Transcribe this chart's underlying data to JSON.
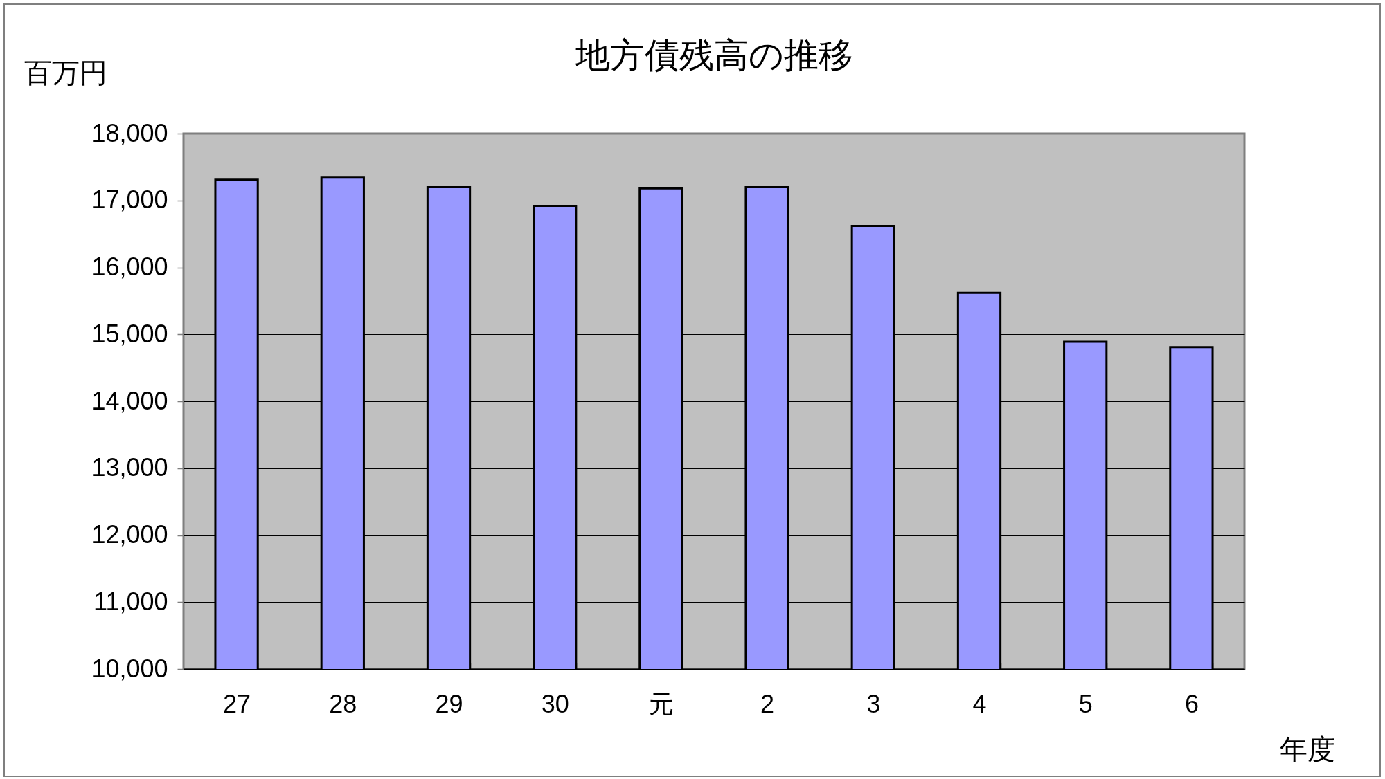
{
  "chart_data": {
    "type": "bar",
    "title": "地方債残高の推移",
    "ylabel": "百万円",
    "xlabel": "年度",
    "categories": [
      "27",
      "28",
      "29",
      "30",
      "元",
      "2",
      "3",
      "4",
      "5",
      "6"
    ],
    "values": [
      17310,
      17340,
      17200,
      16920,
      17180,
      17200,
      16620,
      15620,
      14890,
      14810
    ],
    "color": "#9999ff",
    "ylim": [
      10000,
      18000
    ],
    "yticks": [
      {
        "value": 10000,
        "label": "10,000"
      },
      {
        "value": 11000,
        "label": "11,000"
      },
      {
        "value": 12000,
        "label": "12,000"
      },
      {
        "value": 13000,
        "label": "13,000"
      },
      {
        "value": 14000,
        "label": "14,000"
      },
      {
        "value": 15000,
        "label": "15,000"
      },
      {
        "value": 16000,
        "label": "16,000"
      },
      {
        "value": 17000,
        "label": "17,000"
      },
      {
        "value": 18000,
        "label": "18,000"
      }
    ],
    "grid": "y"
  }
}
